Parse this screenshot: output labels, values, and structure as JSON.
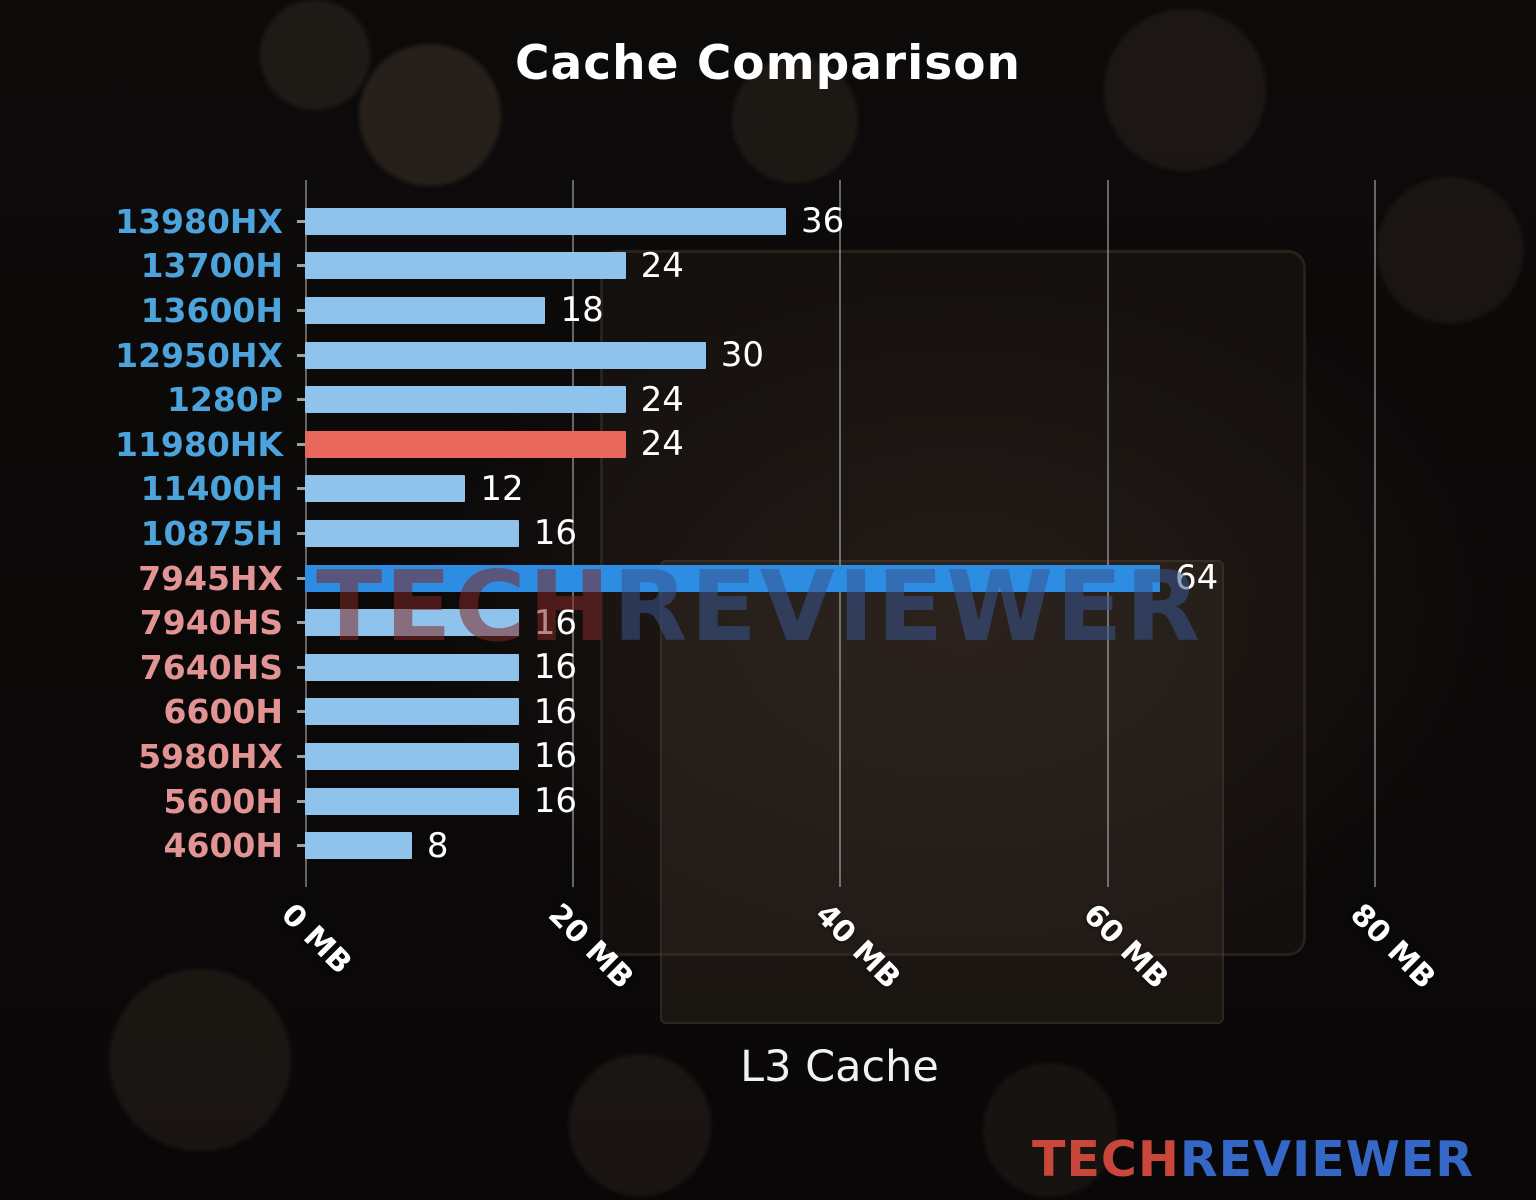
{
  "title": "Cache Comparison",
  "watermark": {
    "tech": "TECH",
    "reviewer": "REVIEWER"
  },
  "logo": {
    "tech": "TECH",
    "reviewer": "REVIEWER"
  },
  "chart_data": {
    "type": "bar",
    "orientation": "horizontal",
    "title": "Cache Comparison",
    "xlabel": "L3 Cache",
    "ylabel": "",
    "xlim": [
      0,
      80
    ],
    "grid": true,
    "legend": false,
    "xticks": [
      {
        "value": 0,
        "label": "0 MB"
      },
      {
        "value": 20,
        "label": "20 MB"
      },
      {
        "value": 40,
        "label": "40 MB"
      },
      {
        "value": 60,
        "label": "60 MB"
      },
      {
        "value": 80,
        "label": "80 MB"
      }
    ],
    "categories": [
      "13980HX",
      "13700H",
      "13600H",
      "12950HX",
      "1280P",
      "11980HK",
      "11400H",
      "10875H",
      "7945HX",
      "7940HS",
      "7640HS",
      "6600H",
      "5980HX",
      "5600H",
      "4600H"
    ],
    "values": [
      36,
      24,
      18,
      30,
      24,
      24,
      12,
      16,
      64,
      16,
      16,
      16,
      16,
      16,
      8
    ],
    "bar_colors": [
      "#8fc3ec",
      "#8fc3ec",
      "#8fc3ec",
      "#8fc3ec",
      "#8fc3ec",
      "#e8685e",
      "#8fc3ec",
      "#8fc3ec",
      "#2d8de2",
      "#8fc3ec",
      "#8fc3ec",
      "#8fc3ec",
      "#8fc3ec",
      "#8fc3ec",
      "#8fc3ec"
    ],
    "label_colors": [
      "#4da3dc",
      "#4da3dc",
      "#4da3dc",
      "#4da3dc",
      "#4da3dc",
      "#4da3dc",
      "#4da3dc",
      "#4da3dc",
      "#e29494",
      "#e29494",
      "#e29494",
      "#e29494",
      "#e29494",
      "#e29494",
      "#e29494"
    ],
    "value_label_color": "#ffffff",
    "gridline_color": "rgba(212,212,212,0.45)"
  },
  "colors": {
    "background": "#0b0908",
    "title_text": "#ffffff",
    "intel_label": "#4da3dc",
    "amd_label": "#e29494",
    "bar_default": "#8fc3ec",
    "bar_highlight_red": "#e8685e",
    "bar_highlight_blue": "#2d8de2"
  }
}
